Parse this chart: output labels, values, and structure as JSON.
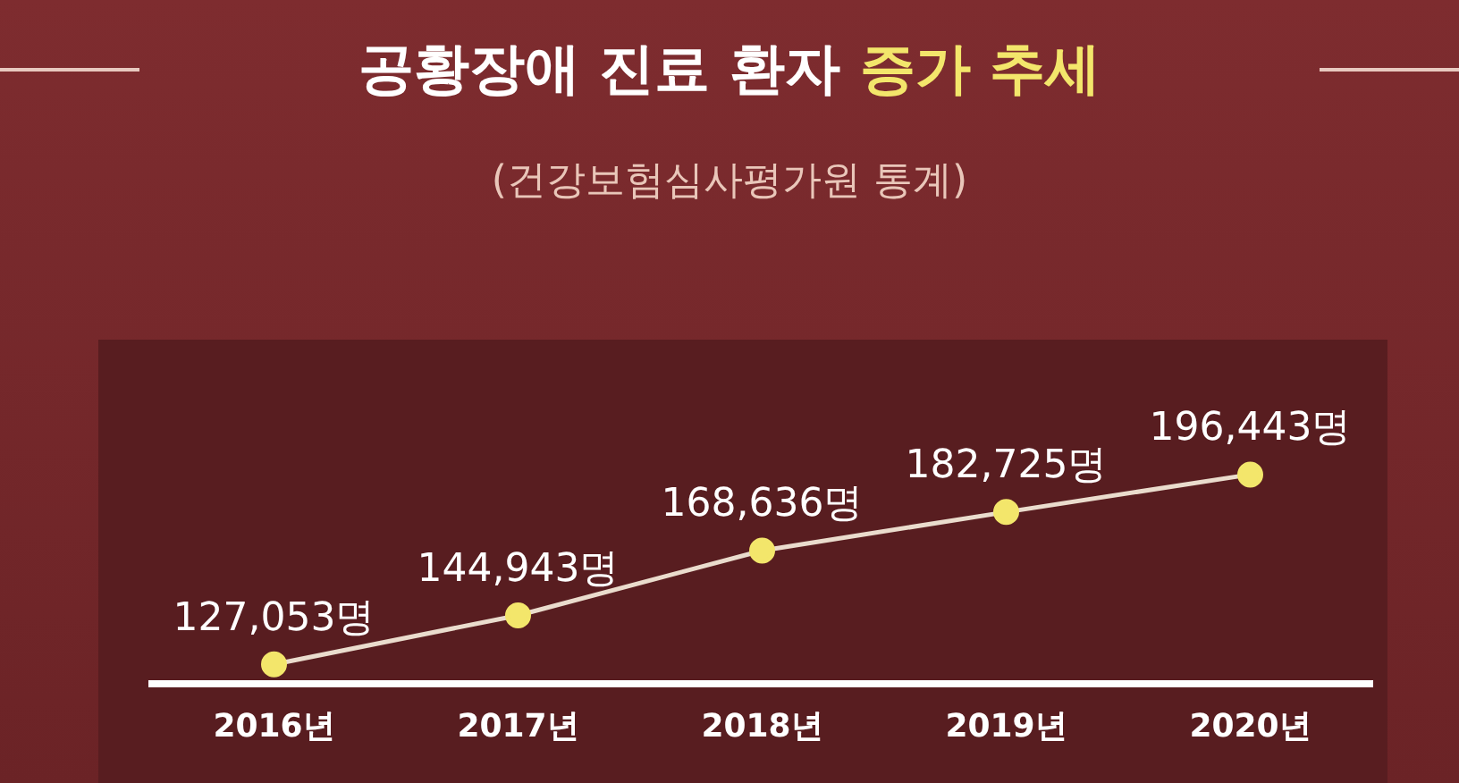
{
  "chart_data": {
    "type": "line",
    "title": "공황장애 진료 환자 증가 추세",
    "subtitle": "(건강보험심사평가원 통계)",
    "categories": [
      "2016년",
      "2017년",
      "2018년",
      "2019년",
      "2020년"
    ],
    "series": [
      {
        "color": "#f3e66b",
        "values": [
          127053,
          144943,
          168636,
          182725,
          196443
        ],
        "value_labels": [
          "127,053명",
          "144,943명",
          "168,636명",
          "182,725명",
          "196,443명"
        ]
      }
    ],
    "marker": "circle",
    "line_style": "solid",
    "legend": false,
    "grid": false,
    "tick_labels": "x"
  }
}
